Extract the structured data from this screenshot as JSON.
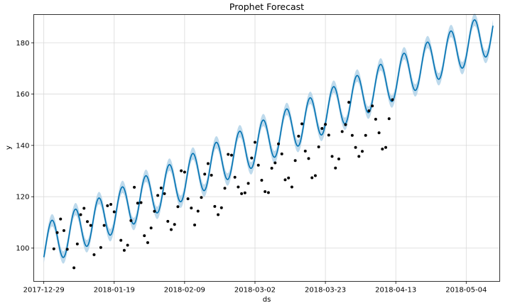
{
  "chart_data": {
    "type": "line",
    "title": "Prophet Forecast",
    "xlabel": "ds",
    "ylabel": "y",
    "x_start": "2017-12-29",
    "x_end": "2018-05-12",
    "xlim": [
      "2017-12-26",
      "2018-05-14"
    ],
    "ylim": [
      87,
      191
    ],
    "grid": true,
    "x_ticks": [
      "2017-12-29",
      "2018-01-19",
      "2018-02-09",
      "2018-03-02",
      "2018-03-23",
      "2018-04-13",
      "2018-05-04"
    ],
    "y_ticks": [
      100,
      120,
      140,
      160,
      180
    ],
    "colors": {
      "forecast": "#0072B2",
      "interval": "#a8cee6",
      "observed": "#000000",
      "grid": "#d9d9d9"
    },
    "forecast_model": {
      "trend_start": 101,
      "trend_slope_per_day": 0.62,
      "weekly_amplitude": 8.3,
      "weekly_peak_day": 2.4,
      "interval_halfwidth": 2.4
    },
    "series": [
      {
        "type": "scatter",
        "points": [
          [
            "2018-01-01",
            99.7
          ],
          [
            "2018-01-02",
            106
          ],
          [
            "2018-01-03",
            111.3
          ],
          [
            "2018-01-04",
            106.8
          ],
          [
            "2018-01-05",
            99.5
          ],
          [
            "2018-01-07",
            92.3
          ],
          [
            "2018-01-08",
            101.6
          ],
          [
            "2018-01-09",
            113
          ],
          [
            "2018-01-10",
            115.5
          ],
          [
            "2018-01-11",
            110.3
          ],
          [
            "2018-01-12",
            108.8
          ],
          [
            "2018-01-13",
            97.4
          ],
          [
            "2018-01-15",
            100.2
          ],
          [
            "2018-01-16",
            108.8
          ],
          [
            "2018-01-17",
            116.5
          ],
          [
            "2018-01-18",
            117
          ],
          [
            "2018-01-19",
            114.1
          ],
          [
            "2018-01-21",
            103
          ],
          [
            "2018-01-22",
            99.1
          ],
          [
            "2018-01-23",
            101.1
          ],
          [
            "2018-01-24",
            110.7
          ],
          [
            "2018-01-25",
            123.7
          ],
          [
            "2018-01-26",
            117.5
          ],
          [
            "2018-01-27",
            117.7
          ],
          [
            "2018-01-28",
            104.8
          ],
          [
            "2018-01-29",
            102.1
          ],
          [
            "2018-01-30",
            107.8
          ],
          [
            "2018-01-31",
            114.3
          ],
          [
            "2018-02-01",
            120.5
          ],
          [
            "2018-02-02",
            123.4
          ],
          [
            "2018-02-03",
            121.2
          ],
          [
            "2018-02-04",
            110.4
          ],
          [
            "2018-02-05",
            107.2
          ],
          [
            "2018-02-06",
            109.2
          ],
          [
            "2018-02-07",
            116.1
          ],
          [
            "2018-02-08",
            130.1
          ],
          [
            "2018-02-09",
            129.6
          ],
          [
            "2018-02-10",
            119.2
          ],
          [
            "2018-02-11",
            115.6
          ],
          [
            "2018-02-12",
            109
          ],
          [
            "2018-02-13",
            114.4
          ],
          [
            "2018-02-14",
            119.7
          ],
          [
            "2018-02-15",
            128.8
          ],
          [
            "2018-02-16",
            132.9
          ],
          [
            "2018-02-17",
            128.4
          ],
          [
            "2018-02-18",
            116.2
          ],
          [
            "2018-02-19",
            113
          ],
          [
            "2018-02-20",
            115.7
          ],
          [
            "2018-02-21",
            123.3
          ],
          [
            "2018-02-22",
            136.5
          ],
          [
            "2018-02-23",
            136.2
          ],
          [
            "2018-02-24",
            127.6
          ],
          [
            "2018-02-25",
            123.8
          ],
          [
            "2018-02-26",
            121.2
          ],
          [
            "2018-02-27",
            121.5
          ],
          [
            "2018-02-28",
            125.2
          ],
          [
            "2018-03-01",
            135.1
          ],
          [
            "2018-03-02",
            141.2
          ],
          [
            "2018-03-03",
            132.3
          ],
          [
            "2018-03-04",
            126.4
          ],
          [
            "2018-03-05",
            122
          ],
          [
            "2018-03-06",
            121.6
          ],
          [
            "2018-03-07",
            131.1
          ],
          [
            "2018-03-08",
            133.2
          ],
          [
            "2018-03-09",
            140.6
          ],
          [
            "2018-03-10",
            136.7
          ],
          [
            "2018-03-11",
            126.6
          ],
          [
            "2018-03-12",
            127.3
          ],
          [
            "2018-03-13",
            123.8
          ],
          [
            "2018-03-14",
            134.1
          ],
          [
            "2018-03-15",
            143.6
          ],
          [
            "2018-03-16",
            148.4
          ],
          [
            "2018-03-17",
            137.8
          ],
          [
            "2018-03-18",
            134.9
          ],
          [
            "2018-03-19",
            127.4
          ],
          [
            "2018-03-20",
            128.2
          ],
          [
            "2018-03-21",
            139.4
          ],
          [
            "2018-03-22",
            146.6
          ],
          [
            "2018-03-23",
            148.2
          ],
          [
            "2018-03-24",
            144
          ],
          [
            "2018-03-25",
            135.7
          ],
          [
            "2018-03-26",
            131.2
          ],
          [
            "2018-03-27",
            134.7
          ],
          [
            "2018-03-28",
            145.4
          ],
          [
            "2018-03-29",
            148.1
          ],
          [
            "2018-03-30",
            156.8
          ],
          [
            "2018-03-31",
            143.9
          ],
          [
            "2018-04-01",
            139.2
          ],
          [
            "2018-04-02",
            135.7
          ],
          [
            "2018-04-03",
            137.7
          ],
          [
            "2018-04-04",
            143.9
          ],
          [
            "2018-04-05",
            153.5
          ],
          [
            "2018-04-06",
            155.4
          ],
          [
            "2018-04-07",
            150.2
          ],
          [
            "2018-04-08",
            144.9
          ],
          [
            "2018-04-09",
            138.6
          ],
          [
            "2018-04-10",
            139.2
          ],
          [
            "2018-04-11",
            150.4
          ],
          [
            "2018-04-12",
            157.8
          ]
        ]
      }
    ]
  }
}
